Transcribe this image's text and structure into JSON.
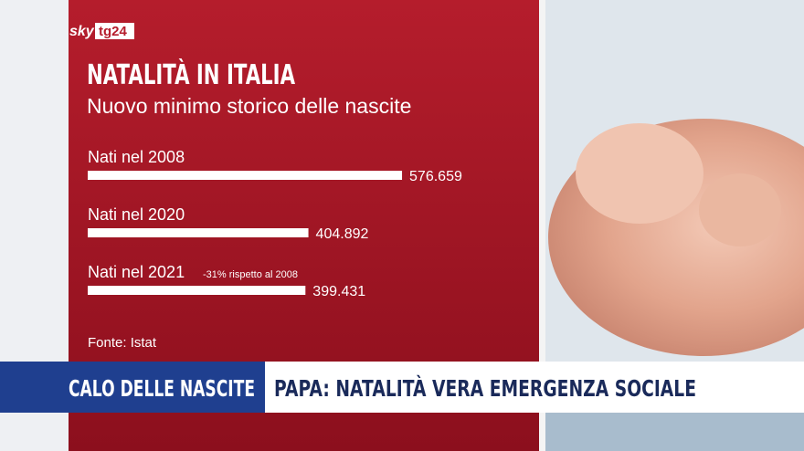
{
  "logo": {
    "brand": "sky",
    "channel": "tg24"
  },
  "chart_data": {
    "type": "bar",
    "orientation": "horizontal",
    "title": "NATALITÀ IN ITALIA",
    "subtitle": "Nuovo minimo storico delle nascite",
    "categories": [
      "Nati nel 2008",
      "Nati nel 2020",
      "Nati nel 2021"
    ],
    "values": [
      576659,
      404892,
      399431
    ],
    "value_labels": [
      "576.659",
      "404.892",
      "399.431"
    ],
    "color": "#ffffff",
    "annotation": "-31% rispetto al 2008",
    "source": "Fonte: Istat"
  },
  "banner": {
    "topic": "CALO DELLE NASCITE",
    "headline": "PAPA: NATALITÀ VERA EMERGENZA SOCIALE"
  }
}
